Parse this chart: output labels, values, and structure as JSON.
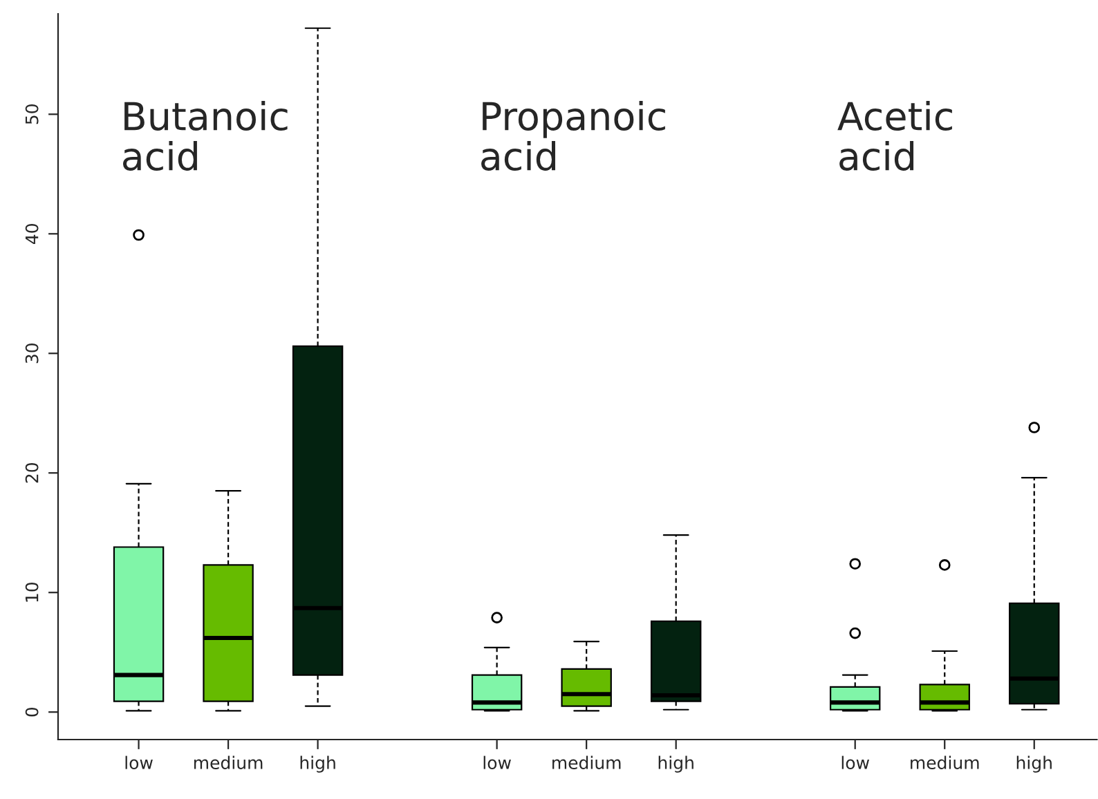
{
  "chart_data": {
    "type": "box",
    "categories": [
      "low",
      "medium",
      "high",
      null,
      "low",
      "medium",
      "high",
      null,
      "low",
      "medium",
      "high"
    ],
    "colors": [
      "#80f5a8",
      "#66bb00",
      "#032210",
      null,
      "#80f5a8",
      "#66bb00",
      "#032210",
      null,
      "#80f5a8",
      "#66bb00",
      "#032210"
    ],
    "boxes": [
      {
        "low": 0.1,
        "q1": 0.9,
        "median": 3.1,
        "q3": 13.8,
        "high": 19.1,
        "outliers": [
          39.9
        ]
      },
      {
        "low": 0.1,
        "q1": 0.9,
        "median": 6.2,
        "q3": 12.3,
        "high": 18.5
      },
      {
        "low": 0.5,
        "q1": 3.1,
        "median": 8.7,
        "q3": 30.6,
        "high": 57.2
      },
      null,
      {
        "low": 0.1,
        "q1": 0.2,
        "median": 0.8,
        "q3": 3.1,
        "high": 5.4,
        "outliers": [
          7.9
        ]
      },
      {
        "low": 0.1,
        "q1": 0.5,
        "median": 1.5,
        "q3": 3.6,
        "high": 5.9
      },
      {
        "low": 0.2,
        "q1": 0.9,
        "median": 1.4,
        "q3": 7.6,
        "high": 14.8
      },
      null,
      {
        "low": 0.1,
        "q1": 0.2,
        "median": 0.8,
        "q3": 2.1,
        "high": 3.1,
        "outliers": [
          6.6,
          12.4
        ]
      },
      {
        "low": 0.1,
        "q1": 0.2,
        "median": 0.8,
        "q3": 2.3,
        "high": 5.1,
        "outliers": [
          12.3
        ]
      },
      {
        "low": 0.2,
        "q1": 0.7,
        "median": 2.8,
        "q3": 9.1,
        "high": 19.6,
        "outliers": [
          23.8
        ]
      }
    ],
    "annotations": [
      "Butanoic\nacid",
      "Propanoic\nacid",
      "Acetic\nacid"
    ],
    "ylim": [
      -2.3,
      58.4
    ],
    "yticks": [
      0,
      10,
      20,
      30,
      40,
      50
    ],
    "grid": false
  }
}
